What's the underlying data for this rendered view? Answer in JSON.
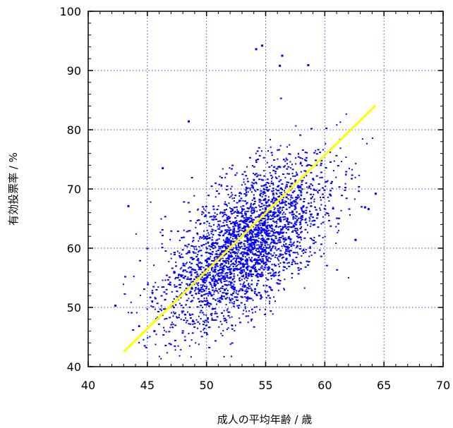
{
  "chart_data": {
    "type": "scatter",
    "title": "",
    "xlabel": "成人の平均年齢 / 歳",
    "ylabel": "有効投票率 / %",
    "xlim": [
      40,
      70
    ],
    "ylim": [
      40,
      100
    ],
    "x_ticks": [
      "40",
      "45",
      "50",
      "55",
      "60",
      "65",
      "70"
    ],
    "y_ticks": [
      "40",
      "50",
      "60",
      "70",
      "80",
      "90",
      "100"
    ],
    "grid": true,
    "legend": "none",
    "series": [
      {
        "kind": "points",
        "color": "#0000ff",
        "approx_count": 3000,
        "center": [
          53.3,
          60.5
        ],
        "spread": [
          3.4,
          7.0
        ],
        "correlation": 0.62,
        "outliers": [
          [
            54.2,
            93.6
          ],
          [
            54.7,
            94.2
          ],
          [
            56.2,
            90.8
          ],
          [
            56.4,
            92.5
          ],
          [
            58.6,
            90.9
          ],
          [
            48.5,
            81.4
          ],
          [
            43.4,
            67.1
          ],
          [
            46.3,
            73.5
          ],
          [
            63.4,
            66.9
          ],
          [
            63.7,
            66.6
          ],
          [
            64.3,
            69.2
          ],
          [
            62.6,
            61.4
          ],
          [
            45.6,
            46.0
          ],
          [
            42.3,
            50.3
          ]
        ]
      },
      {
        "kind": "fit-line",
        "color": "#ffff00",
        "x": [
          43,
          64.3
        ],
        "y": [
          42.5,
          84.1
        ]
      }
    ]
  }
}
